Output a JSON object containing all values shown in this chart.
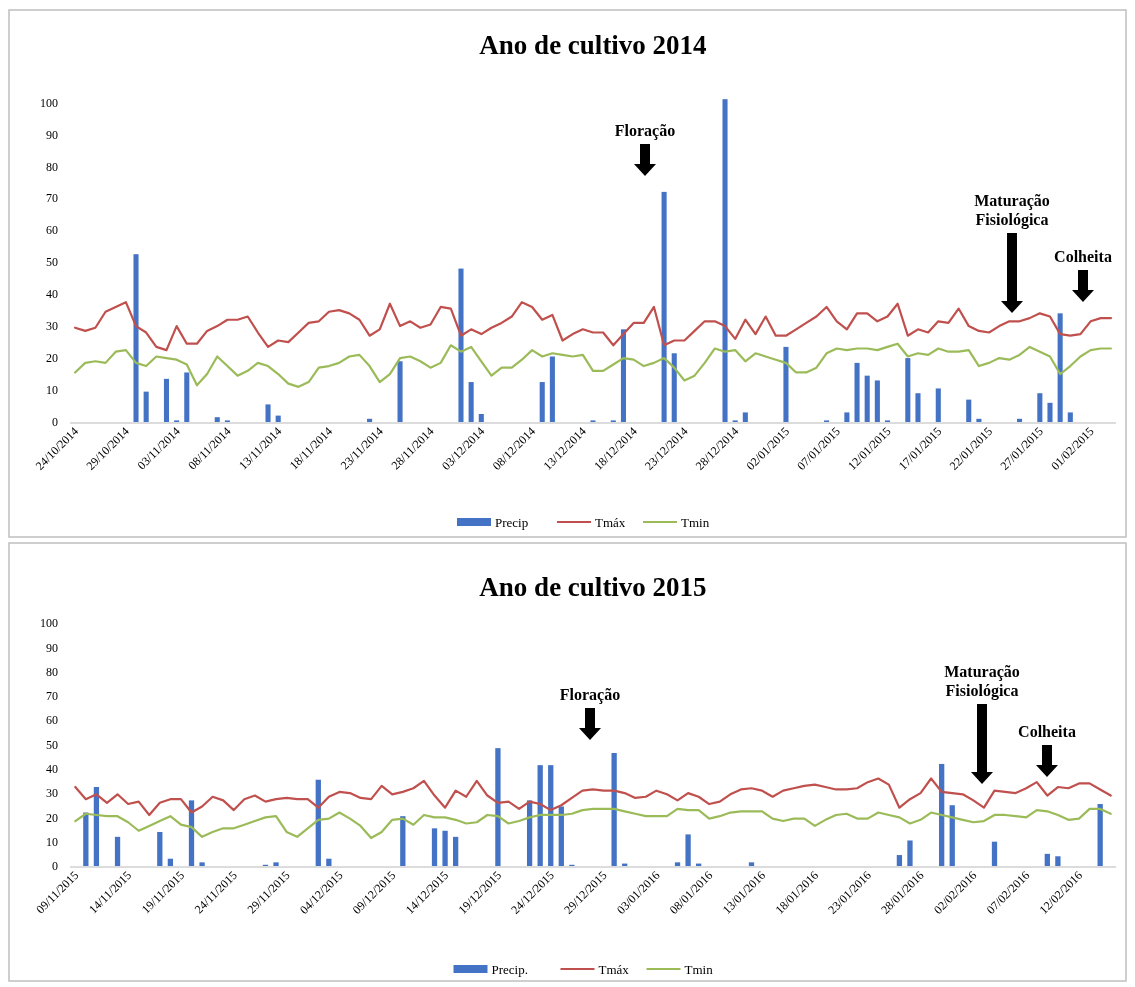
{
  "chart_data": [
    {
      "type": "bar",
      "title": "Ano de cultivo 2014",
      "legend": "bottom",
      "x": [
        "2014-10-24",
        "2014-10-25",
        "2014-10-26",
        "2014-10-27",
        "2014-10-28",
        "2014-10-29",
        "2014-10-30",
        "2014-10-31",
        "2014-11-01",
        "2014-11-02",
        "2014-11-03",
        "2014-11-04",
        "2014-11-05",
        "2014-11-06",
        "2014-11-07",
        "2014-11-08",
        "2014-11-09",
        "2014-11-10",
        "2014-11-11",
        "2014-11-12",
        "2014-11-13",
        "2014-11-14",
        "2014-11-15",
        "2014-11-16",
        "2014-11-17",
        "2014-11-18",
        "2014-11-19",
        "2014-11-20",
        "2014-11-21",
        "2014-11-22",
        "2014-11-23",
        "2014-11-24",
        "2014-11-25",
        "2014-11-26",
        "2014-11-27",
        "2014-11-28",
        "2014-11-29",
        "2014-11-30",
        "2014-12-01",
        "2014-12-02",
        "2014-12-03",
        "2014-12-04",
        "2014-12-05",
        "2014-12-06",
        "2014-12-07",
        "2014-12-08",
        "2014-12-09",
        "2014-12-10",
        "2014-12-11",
        "2014-12-12",
        "2014-12-13",
        "2014-12-14",
        "2014-12-15",
        "2014-12-16",
        "2014-12-17",
        "2014-12-18",
        "2014-12-19",
        "2014-12-20",
        "2014-12-21",
        "2014-12-22",
        "2014-12-23",
        "2014-12-24",
        "2014-12-25",
        "2014-12-26",
        "2014-12-27",
        "2014-12-28",
        "2014-12-29",
        "2014-12-30",
        "2014-12-31",
        "2015-01-01",
        "2015-01-02",
        "2015-01-03",
        "2015-01-04",
        "2015-01-05",
        "2015-01-06",
        "2015-01-07",
        "2015-01-08",
        "2015-01-09",
        "2015-01-10",
        "2015-01-11",
        "2015-01-12",
        "2015-01-13",
        "2015-01-14",
        "2015-01-15",
        "2015-01-16",
        "2015-01-17",
        "2015-01-18",
        "2015-01-19",
        "2015-01-20",
        "2015-01-21",
        "2015-01-22",
        "2015-01-23",
        "2015-01-24",
        "2015-01-25",
        "2015-01-26",
        "2015-01-27",
        "2015-01-28",
        "2015-01-29",
        "2015-01-30",
        "2015-01-31",
        "2015-02-01",
        "2015-02-02",
        "2015-02-03"
      ],
      "xlim": [
        "2014-10-23T12:00",
        "2015-02-03T12:00"
      ],
      "xticks": [
        {
          "value": "2014-10-24",
          "label": "24/10/2014"
        },
        {
          "value": "2014-10-29",
          "label": "29/10/2014"
        },
        {
          "value": "2014-11-03",
          "label": "03/11/2014"
        },
        {
          "value": "2014-11-08",
          "label": "08/11/2014"
        },
        {
          "value": "2014-11-13",
          "label": "13/11/2014"
        },
        {
          "value": "2014-11-18",
          "label": "18/11/2014"
        },
        {
          "value": "2014-11-23",
          "label": "23/11/2014"
        },
        {
          "value": "2014-11-28",
          "label": "28/11/2014"
        },
        {
          "value": "2014-12-03",
          "label": "03/12/2014"
        },
        {
          "value": "2014-12-08",
          "label": "08/12/2014"
        },
        {
          "value": "2014-12-13",
          "label": "13/12/2014"
        },
        {
          "value": "2014-12-18",
          "label": "18/12/2014"
        },
        {
          "value": "2014-12-23",
          "label": "23/12/2014"
        },
        {
          "value": "2014-12-28",
          "label": "28/12/2014"
        },
        {
          "value": "2015-01-02",
          "label": "02/01/2015"
        },
        {
          "value": "2015-01-07",
          "label": "07/01/2015"
        },
        {
          "value": "2015-01-12",
          "label": "12/01/2015"
        },
        {
          "value": "2015-01-17",
          "label": "17/01/2015"
        },
        {
          "value": "2015-01-22",
          "label": "22/01/2015"
        },
        {
          "value": "2015-01-27",
          "label": "27/01/2015"
        },
        {
          "value": "2015-02-01",
          "label": "01/02/2015"
        }
      ],
      "ylim": [
        0,
        102
      ],
      "yticks": [
        0,
        10,
        20,
        30,
        40,
        50,
        60,
        70,
        80,
        90,
        100
      ],
      "series": [
        {
          "name": "Precip",
          "color": "#4472c4",
          "values": [
            0,
            0,
            0,
            0,
            0,
            0,
            52.5,
            9.5,
            0,
            13.5,
            0.5,
            15.5,
            0,
            0,
            1.5,
            0.5,
            0,
            0,
            0,
            5.5,
            2,
            0,
            0,
            0,
            0,
            0,
            0,
            0,
            0,
            1,
            0,
            0,
            19,
            0,
            0,
            0,
            0,
            0,
            48,
            12.5,
            2.5,
            0,
            0,
            0,
            0,
            0,
            12.5,
            20.5,
            0,
            0,
            0,
            0.5,
            0,
            0.5,
            29,
            0,
            0,
            0,
            72,
            21.5,
            0,
            0,
            0,
            0,
            101,
            0.5,
            3,
            0,
            0,
            0,
            23.5,
            0,
            0,
            0,
            0.5,
            0,
            3,
            18.5,
            14.5,
            13,
            0.5,
            0,
            20,
            9,
            0,
            10.5,
            0,
            0,
            7,
            1,
            0,
            0,
            0,
            1,
            0,
            9,
            6,
            34,
            3,
            0,
            0,
            0,
            0
          ]
        },
        {
          "name": "Tmáx",
          "type": "line",
          "color": "#c0504d",
          "values": [
            29.5,
            28.5,
            29.5,
            34.5,
            36,
            37.5,
            30,
            28,
            23.5,
            22.5,
            30,
            24.5,
            24.5,
            28.5,
            30,
            32,
            32,
            33,
            28,
            23.5,
            25.5,
            25,
            28,
            31,
            31.5,
            34.5,
            35,
            34,
            32,
            27,
            29,
            37,
            30,
            31.5,
            29.5,
            30.5,
            36,
            35.5,
            27,
            29,
            27.5,
            29.5,
            31,
            33,
            37.5,
            36,
            32,
            33.5,
            25.5,
            27.5,
            29,
            28,
            28,
            24,
            27.5,
            31,
            31,
            36,
            24,
            25.5,
            25.5,
            28.5,
            31.5,
            31.5,
            30,
            26,
            32,
            27.5,
            33,
            27,
            27,
            29,
            31,
            33,
            36,
            31.5,
            29,
            34,
            34,
            31.5,
            33,
            37,
            27,
            29,
            28,
            31.5,
            31,
            35.5,
            30,
            28.5,
            28,
            30,
            31.5,
            31.5,
            32.5,
            34,
            33,
            27.5,
            27,
            27.5,
            31.5,
            32.5,
            32.5
          ]
        },
        {
          "name": "Tmin",
          "type": "line",
          "color": "#9bbb59",
          "values": [
            15.5,
            18.5,
            19,
            18.5,
            22,
            22.5,
            18.5,
            17.5,
            20.5,
            20,
            19.5,
            18,
            11.5,
            15,
            20.5,
            17.5,
            14.5,
            16,
            18.5,
            17.5,
            15,
            12,
            11,
            12.5,
            17,
            17.5,
            18.5,
            20.5,
            21,
            17.5,
            12.5,
            15,
            20,
            20.5,
            19,
            17,
            18.5,
            24,
            22,
            23.5,
            19,
            14.5,
            17,
            17,
            19.5,
            22.5,
            20.5,
            21.5,
            21,
            20.5,
            21,
            16,
            16,
            18,
            20,
            19.5,
            17.5,
            18.5,
            20,
            17,
            13,
            14.5,
            18.5,
            23,
            22,
            22.5,
            19,
            21.5,
            20.5,
            19.5,
            18.5,
            15.5,
            15.5,
            17,
            21.5,
            23,
            22.5,
            23,
            23,
            22.5,
            23.5,
            24.5,
            20.5,
            21.5,
            21,
            23,
            22,
            22,
            22.5,
            17.5,
            18.5,
            20,
            19.5,
            21,
            23.5,
            22,
            20.5,
            15,
            17.5,
            20.5,
            22.5,
            23,
            23
          ]
        }
      ],
      "annotations": [
        "Floração",
        "Maturação Fisiológica",
        "Colheita"
      ]
    },
    {
      "type": "bar",
      "title": "Ano de cultivo 2015",
      "legend": "bottom",
      "x": [
        "2015-11-09",
        "2015-11-10",
        "2015-11-11",
        "2015-11-12",
        "2015-11-13",
        "2015-11-14",
        "2015-11-15",
        "2015-11-16",
        "2015-11-17",
        "2015-11-18",
        "2015-11-19",
        "2015-11-20",
        "2015-11-21",
        "2015-11-22",
        "2015-11-23",
        "2015-11-24",
        "2015-11-25",
        "2015-11-26",
        "2015-11-27",
        "2015-11-28",
        "2015-11-29",
        "2015-11-30",
        "2015-12-01",
        "2015-12-02",
        "2015-12-03",
        "2015-12-04",
        "2015-12-05",
        "2015-12-06",
        "2015-12-07",
        "2015-12-08",
        "2015-12-09",
        "2015-12-10",
        "2015-12-11",
        "2015-12-12",
        "2015-12-13",
        "2015-12-14",
        "2015-12-15",
        "2015-12-16",
        "2015-12-17",
        "2015-12-18",
        "2015-12-19",
        "2015-12-20",
        "2015-12-21",
        "2015-12-22",
        "2015-12-23",
        "2015-12-24",
        "2015-12-25",
        "2015-12-26",
        "2015-12-27",
        "2015-12-28",
        "2015-12-29",
        "2015-12-30",
        "2015-12-31",
        "2016-01-01",
        "2016-01-02",
        "2016-01-03",
        "2016-01-04",
        "2016-01-05",
        "2016-01-06",
        "2016-01-07",
        "2016-01-08",
        "2016-01-09",
        "2016-01-10",
        "2016-01-11",
        "2016-01-12",
        "2016-01-13",
        "2016-01-14",
        "2016-01-15",
        "2016-01-16",
        "2016-01-17",
        "2016-01-18",
        "2016-01-19",
        "2016-01-20",
        "2016-01-21",
        "2016-01-22",
        "2016-01-23",
        "2016-01-24",
        "2016-01-25",
        "2016-01-26",
        "2016-01-27",
        "2016-01-28",
        "2016-01-29",
        "2016-01-30",
        "2016-01-31",
        "2016-02-01",
        "2016-02-02",
        "2016-02-03",
        "2016-02-04",
        "2016-02-05",
        "2016-02-06",
        "2016-02-07",
        "2016-02-08",
        "2016-02-09",
        "2016-02-10",
        "2016-02-11",
        "2016-02-12",
        "2016-02-13",
        "2016-02-14",
        "2016-02-15"
      ],
      "xlim": [
        "2015-11-08T12:00",
        "2016-02-15T12:00"
      ],
      "xticks": [
        {
          "value": "2015-11-09",
          "label": "09/11/2015"
        },
        {
          "value": "2015-11-14",
          "label": "14/11/2015"
        },
        {
          "value": "2015-11-19",
          "label": "19/11/2015"
        },
        {
          "value": "2015-11-24",
          "label": "24/11/2015"
        },
        {
          "value": "2015-11-29",
          "label": "29/11/2015"
        },
        {
          "value": "2015-12-04",
          "label": "04/12/2015"
        },
        {
          "value": "2015-12-09",
          "label": "09/12/2015"
        },
        {
          "value": "2015-12-14",
          "label": "14/12/2015"
        },
        {
          "value": "2015-12-19",
          "label": "19/12/2015"
        },
        {
          "value": "2015-12-24",
          "label": "24/12/2015"
        },
        {
          "value": "2015-12-29",
          "label": "29/12/2015"
        },
        {
          "value": "2016-01-03",
          "label": "03/01/2016"
        },
        {
          "value": "2016-01-08",
          "label": "08/01/2016"
        },
        {
          "value": "2016-01-13",
          "label": "13/01/2016"
        },
        {
          "value": "2016-01-18",
          "label": "18/01/2016"
        },
        {
          "value": "2016-01-23",
          "label": "23/01/2016"
        },
        {
          "value": "2016-01-28",
          "label": "28/01/2016"
        },
        {
          "value": "2016-02-02",
          "label": "02/02/2016"
        },
        {
          "value": "2016-02-07",
          "label": "07/02/2016"
        },
        {
          "value": "2016-02-12",
          "label": "12/02/2016"
        }
      ],
      "ylim": [
        0,
        100
      ],
      "yticks": [
        0,
        10,
        20,
        30,
        40,
        50,
        60,
        70,
        80,
        90,
        100
      ],
      "series": [
        {
          "name": "Precip.",
          "color": "#4472c4",
          "values": [
            0,
            22,
            32.5,
            0,
            12,
            0,
            0,
            0,
            14,
            3,
            0,
            27,
            1.5,
            0,
            0,
            0,
            0,
            0,
            0.5,
            1.5,
            0,
            0,
            0,
            35.5,
            3,
            0,
            0,
            0,
            0,
            0,
            0,
            20.5,
            0,
            0,
            15.5,
            14.5,
            12,
            0,
            0,
            0,
            48.5,
            0,
            0,
            27,
            41.5,
            41.5,
            24.5,
            0.5,
            0,
            0,
            0,
            46.5,
            1,
            0,
            0,
            0,
            0,
            1.5,
            13,
            1,
            0,
            0,
            0,
            0,
            1.5,
            0,
            0,
            0,
            0,
            0,
            0,
            0,
            0,
            0,
            0,
            0,
            0,
            0,
            4.5,
            10.5,
            0,
            0,
            42,
            25,
            0,
            0,
            0,
            10,
            0,
            0,
            0,
            0,
            5,
            4,
            0,
            0,
            0,
            25.5,
            0
          ]
        },
        {
          "name": "Tmáx",
          "type": "line",
          "color": "#c0504d",
          "values": [
            32.5,
            27.5,
            29.5,
            26,
            29.5,
            25.5,
            26.5,
            21,
            26,
            27.5,
            27.5,
            22,
            24.5,
            28.5,
            27,
            23,
            27.5,
            29,
            26.5,
            27.5,
            28,
            27.5,
            27.5,
            24,
            28.5,
            30.5,
            30,
            28,
            27.5,
            33,
            29.5,
            30.5,
            32,
            35,
            29,
            24,
            31,
            28.5,
            35,
            29,
            26,
            26.5,
            23.5,
            26.5,
            25.5,
            23,
            25,
            28,
            31,
            31.5,
            31,
            31,
            30,
            28,
            28.5,
            31,
            29.5,
            27,
            30,
            28.5,
            25.5,
            26.5,
            29.5,
            31.5,
            32,
            31,
            28.5,
            31,
            32,
            33,
            33.5,
            32.5,
            31.5,
            31.5,
            32,
            34.5,
            36,
            33.5,
            24,
            27.5,
            30,
            36,
            30.5,
            30,
            29.5,
            27,
            24,
            31,
            30.5,
            30,
            32,
            34.5,
            29,
            32.5,
            32,
            34,
            34,
            31.5,
            29
          ]
        },
        {
          "name": "Tmin",
          "type": "line",
          "color": "#9bbb59",
          "values": [
            18.5,
            21.5,
            21,
            20.5,
            20.5,
            18,
            14.5,
            16.5,
            18.5,
            20.5,
            17,
            16,
            12,
            14,
            15.5,
            15.5,
            17,
            18.5,
            20,
            20.5,
            14,
            12,
            15.5,
            19,
            19.5,
            22,
            19.5,
            16.5,
            11.5,
            14,
            19,
            19.5,
            17,
            21,
            20,
            20,
            19,
            17.5,
            18,
            21,
            20.5,
            17.5,
            18.5,
            20,
            21,
            21,
            21,
            21.5,
            23,
            23.5,
            23.5,
            23.5,
            22.5,
            21.5,
            20.5,
            20.5,
            20.5,
            23.5,
            23,
            23,
            19.5,
            20.5,
            22,
            22.5,
            22.5,
            22.5,
            19.5,
            18.5,
            19.5,
            19.5,
            16.5,
            19,
            21,
            21.5,
            19.5,
            19.5,
            22,
            21,
            20,
            17.5,
            19,
            22,
            21,
            20,
            19,
            18,
            18.5,
            21,
            21,
            20.5,
            20,
            23,
            22.5,
            21,
            19,
            19.5,
            23.5,
            23.5,
            21.5
          ]
        }
      ],
      "annotations": [
        "Floração",
        "Maturação Fisiológica",
        "Colheita"
      ]
    }
  ]
}
